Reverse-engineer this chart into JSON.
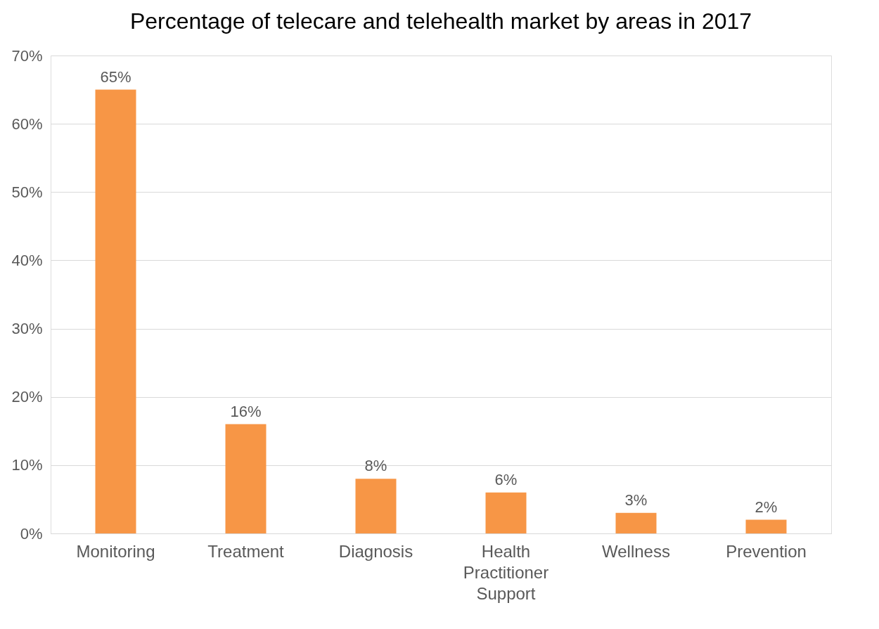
{
  "chart_data": {
    "type": "bar",
    "title": "Percentage of telecare and telehealth market by areas in 2017",
    "categories": [
      "Monitoring",
      "Treatment",
      "Diagnosis",
      "Health Practitioner Support",
      "Wellness",
      "Prevention"
    ],
    "values": [
      65,
      16,
      8,
      6,
      3,
      2
    ],
    "value_labels": [
      "65%",
      "16%",
      "8%",
      "6%",
      "3%",
      "2%"
    ],
    "color": "#f79646",
    "ylim": [
      0,
      70
    ],
    "yticks": [
      {
        "value": 0,
        "label": "0%"
      },
      {
        "value": 10,
        "label": "10%"
      },
      {
        "value": 20,
        "label": "20%"
      },
      {
        "value": 30,
        "label": "30%"
      },
      {
        "value": 40,
        "label": "40%"
      },
      {
        "value": 50,
        "label": "50%"
      },
      {
        "value": 60,
        "label": "60%"
      },
      {
        "value": 70,
        "label": "70%"
      }
    ],
    "grid": "y"
  }
}
